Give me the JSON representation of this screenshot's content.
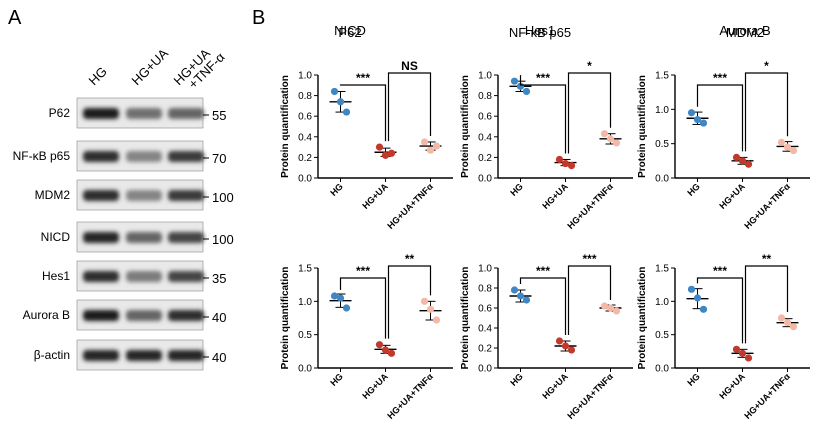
{
  "panels": {
    "a": "A",
    "b": "B"
  },
  "blot": {
    "lanes": [
      "HG",
      "HG+UA",
      "HG+UA\n+TNF-α"
    ],
    "rows": [
      {
        "label": "P62",
        "mw": "55",
        "intensity": [
          0.95,
          0.55,
          0.6
        ]
      },
      {
        "label": "NF-κB p65",
        "mw": "70",
        "intensity": [
          0.85,
          0.45,
          0.8
        ]
      },
      {
        "label": "MDM2",
        "mw": "100",
        "intensity": [
          0.85,
          0.45,
          0.8
        ]
      },
      {
        "label": "NICD",
        "mw": "100",
        "intensity": [
          0.9,
          0.6,
          0.75
        ]
      },
      {
        "label": "Hes1",
        "mw": "35",
        "intensity": [
          0.85,
          0.5,
          0.75
        ]
      },
      {
        "label": "Aurora B",
        "mw": "40",
        "intensity": [
          0.95,
          0.6,
          0.85
        ]
      },
      {
        "label": "β-actin",
        "mw": "40",
        "intensity": [
          0.9,
          0.9,
          0.9
        ]
      }
    ]
  },
  "colors": {
    "hg": "#3e86c4",
    "hgua": "#c0392b",
    "tnf": "#f3b8a6"
  },
  "chart_data": [
    {
      "type": "scatter",
      "title": "P62",
      "ylabel": "Protein quantification",
      "categories": [
        "HG",
        "HG+UA",
        "HG+UA+TNFα"
      ],
      "ylim": [
        0,
        1.0
      ],
      "yticks": [
        0.0,
        0.2,
        0.4,
        0.6,
        0.8,
        1.0
      ],
      "points": [
        [
          0.84,
          0.74,
          0.64
        ],
        [
          0.3,
          0.22,
          0.24
        ],
        [
          0.35,
          0.27,
          0.31
        ]
      ],
      "mean": [
        0.74,
        0.25,
        0.31
      ],
      "sd": [
        0.1,
        0.04,
        0.04
      ],
      "sig": [
        "***",
        "NS"
      ]
    },
    {
      "type": "scatter",
      "title": "NF-κB p65",
      "ylabel": "Protein quantification",
      "categories": [
        "HG",
        "HG+UA",
        "HG+UA+TNFα"
      ],
      "ylim": [
        0,
        1.0
      ],
      "yticks": [
        0.0,
        0.2,
        0.4,
        0.6,
        0.8,
        1.0
      ],
      "points": [
        [
          0.94,
          0.89,
          0.84
        ],
        [
          0.18,
          0.14,
          0.12
        ],
        [
          0.43,
          0.38,
          0.34
        ]
      ],
      "mean": [
        0.89,
        0.15,
        0.38
      ],
      "sd": [
        0.05,
        0.03,
        0.05
      ],
      "sig": [
        "***",
        "*"
      ]
    },
    {
      "type": "scatter",
      "title": "MDM2",
      "ylabel": "Protein quantification",
      "categories": [
        "HG",
        "HG+UA",
        "HG+UA+TNFα"
      ],
      "ylim": [
        0,
        1.5
      ],
      "yticks": [
        0.0,
        0.5,
        1.0,
        1.5
      ],
      "points": [
        [
          0.95,
          0.85,
          0.8
        ],
        [
          0.3,
          0.25,
          0.2
        ],
        [
          0.52,
          0.45,
          0.4
        ]
      ],
      "mean": [
        0.87,
        0.25,
        0.46
      ],
      "sd": [
        0.09,
        0.05,
        0.07
      ],
      "sig": [
        "***",
        "*"
      ]
    },
    {
      "type": "scatter",
      "title": "NICD",
      "ylabel": "Protein quantification",
      "categories": [
        "HG",
        "HG+UA",
        "HG+UA+TNFα"
      ],
      "ylim": [
        0,
        1.5
      ],
      "yticks": [
        0.0,
        0.5,
        1.0,
        1.5
      ],
      "points": [
        [
          1.08,
          1.05,
          0.9
        ],
        [
          0.35,
          0.27,
          0.22
        ],
        [
          1.0,
          0.88,
          0.72
        ]
      ],
      "mean": [
        1.01,
        0.28,
        0.86
      ],
      "sd": [
        0.1,
        0.06,
        0.14
      ],
      "sig": [
        "***",
        "**"
      ]
    },
    {
      "type": "scatter",
      "title": "Hes1",
      "ylabel": "Protein quantification",
      "categories": [
        "HG",
        "HG+UA",
        "HG+UA+TNFα"
      ],
      "ylim": [
        0,
        1.0
      ],
      "yticks": [
        0.0,
        0.2,
        0.4,
        0.6,
        0.8,
        1.0
      ],
      "points": [
        [
          0.78,
          0.72,
          0.68
        ],
        [
          0.27,
          0.22,
          0.18
        ],
        [
          0.62,
          0.6,
          0.57
        ]
      ],
      "mean": [
        0.72,
        0.22,
        0.6
      ],
      "sd": [
        0.06,
        0.05,
        0.03
      ],
      "sig": [
        "***",
        "***"
      ]
    },
    {
      "type": "scatter",
      "title": "Aurora B",
      "ylabel": "Protein quantification",
      "categories": [
        "HG",
        "HG+UA",
        "HG+UA+TNFα"
      ],
      "ylim": [
        0,
        1.5
      ],
      "yticks": [
        0.0,
        0.5,
        1.0,
        1.5
      ],
      "points": [
        [
          1.18,
          1.05,
          0.88
        ],
        [
          0.28,
          0.22,
          0.15
        ],
        [
          0.75,
          0.68,
          0.62
        ]
      ],
      "mean": [
        1.04,
        0.22,
        0.68
      ],
      "sd": [
        0.15,
        0.06,
        0.06
      ],
      "sig": [
        "***",
        "**"
      ]
    }
  ]
}
